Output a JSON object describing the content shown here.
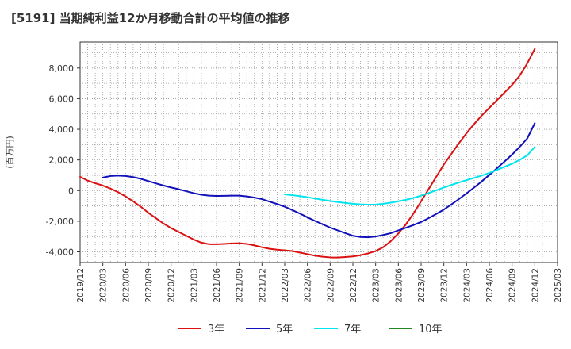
{
  "chart_data": {
    "type": "line",
    "title": "[5191]  当期純利益12か月移動合計の平均値の推移",
    "ylabel": "(百万円)",
    "xlabel": "",
    "ylim": [
      -4700,
      9700
    ],
    "yticks": [
      -4000,
      -2000,
      0,
      2000,
      4000,
      6000,
      8000
    ],
    "ytick_labels": [
      "-4,000",
      "-2,000",
      "0",
      "2,000",
      "4,000",
      "6,000",
      "8,000"
    ],
    "xlim": [
      "2019/12",
      "2025/03"
    ],
    "xtick_labels": [
      "2019/12",
      "2020/03",
      "2020/06",
      "2020/09",
      "2020/12",
      "2021/03",
      "2021/06",
      "2021/09",
      "2021/12",
      "2022/03",
      "2022/06",
      "2022/09",
      "2022/12",
      "2023/03",
      "2023/06",
      "2023/09",
      "2023/12",
      "2024/03",
      "2024/06",
      "2024/09",
      "2024/12",
      "2025/03"
    ],
    "grid": true,
    "legend_position": "bottom",
    "series": [
      {
        "name": "3年",
        "color": "#dd1111",
        "x": [
          "2019/12",
          "2020/01",
          "2020/02",
          "2020/03",
          "2020/04",
          "2020/05",
          "2020/06",
          "2020/07",
          "2020/08",
          "2020/09",
          "2020/10",
          "2020/11",
          "2020/12",
          "2021/01",
          "2021/02",
          "2021/03",
          "2021/04",
          "2021/05",
          "2021/06",
          "2021/07",
          "2021/08",
          "2021/09",
          "2021/10",
          "2021/11",
          "2021/12",
          "2022/01",
          "2022/02",
          "2022/03",
          "2022/04",
          "2022/05",
          "2022/06",
          "2022/07",
          "2022/08",
          "2022/09",
          "2022/10",
          "2022/11",
          "2022/12",
          "2023/01",
          "2023/02",
          "2023/03",
          "2023/04",
          "2023/05",
          "2023/06",
          "2023/07",
          "2023/08",
          "2023/09",
          "2023/10",
          "2023/11",
          "2023/12",
          "2024/01",
          "2024/02",
          "2024/03",
          "2024/04",
          "2024/05",
          "2024/06",
          "2024/07",
          "2024/08",
          "2024/09",
          "2024/10",
          "2024/11",
          "2024/12"
        ],
        "values": [
          900,
          650,
          480,
          330,
          130,
          -100,
          -380,
          -700,
          -1050,
          -1450,
          -1800,
          -2150,
          -2450,
          -2700,
          -2950,
          -3200,
          -3400,
          -3500,
          -3500,
          -3480,
          -3450,
          -3440,
          -3480,
          -3580,
          -3700,
          -3800,
          -3860,
          -3900,
          -3950,
          -4050,
          -4150,
          -4250,
          -4320,
          -4360,
          -4370,
          -4340,
          -4300,
          -4220,
          -4100,
          -3950,
          -3700,
          -3300,
          -2800,
          -2200,
          -1500,
          -700,
          100,
          900,
          1700,
          2400,
          3100,
          3750,
          4350,
          4900,
          5400,
          5900,
          6400,
          6900,
          7500,
          8300,
          9250
        ]
      },
      {
        "name": "5年",
        "color": "#1111bb",
        "x": [
          "2020/03",
          "2020/04",
          "2020/05",
          "2020/06",
          "2020/07",
          "2020/08",
          "2020/09",
          "2020/10",
          "2020/11",
          "2020/12",
          "2021/01",
          "2021/02",
          "2021/03",
          "2021/04",
          "2021/05",
          "2021/06",
          "2021/07",
          "2021/08",
          "2021/09",
          "2021/10",
          "2021/11",
          "2021/12",
          "2022/01",
          "2022/02",
          "2022/03",
          "2022/04",
          "2022/05",
          "2022/06",
          "2022/07",
          "2022/08",
          "2022/09",
          "2022/10",
          "2022/11",
          "2022/12",
          "2023/01",
          "2023/02",
          "2023/03",
          "2023/04",
          "2023/05",
          "2023/06",
          "2023/07",
          "2023/08",
          "2023/09",
          "2023/10",
          "2023/11",
          "2023/12",
          "2024/01",
          "2024/02",
          "2024/03",
          "2024/04",
          "2024/05",
          "2024/06",
          "2024/07",
          "2024/08",
          "2024/09",
          "2024/10",
          "2024/11",
          "2024/12"
        ],
        "values": [
          850,
          950,
          980,
          950,
          880,
          770,
          620,
          470,
          330,
          200,
          90,
          -40,
          -170,
          -270,
          -330,
          -350,
          -340,
          -330,
          -330,
          -380,
          -460,
          -560,
          -720,
          -880,
          -1050,
          -1270,
          -1500,
          -1750,
          -1980,
          -2200,
          -2420,
          -2600,
          -2780,
          -2950,
          -3030,
          -3050,
          -3000,
          -2900,
          -2780,
          -2600,
          -2430,
          -2250,
          -2050,
          -1800,
          -1530,
          -1240,
          -900,
          -550,
          -180,
          200,
          600,
          1020,
          1450,
          1900,
          2350,
          2850,
          3400,
          4400
        ]
      },
      {
        "name": "7年",
        "color": "#00e5ee",
        "x": [
          "2022/03",
          "2022/04",
          "2022/05",
          "2022/06",
          "2022/07",
          "2022/08",
          "2022/09",
          "2022/10",
          "2022/11",
          "2022/12",
          "2023/01",
          "2023/02",
          "2023/03",
          "2023/04",
          "2023/05",
          "2023/06",
          "2023/07",
          "2023/08",
          "2023/09",
          "2023/10",
          "2023/11",
          "2023/12",
          "2024/01",
          "2024/02",
          "2024/03",
          "2024/04",
          "2024/05",
          "2024/06",
          "2024/07",
          "2024/08",
          "2024/09",
          "2024/10",
          "2024/11",
          "2024/12"
        ],
        "values": [
          -250,
          -300,
          -360,
          -430,
          -520,
          -600,
          -680,
          -750,
          -810,
          -860,
          -900,
          -920,
          -910,
          -860,
          -790,
          -700,
          -600,
          -480,
          -330,
          -160,
          20,
          200,
          370,
          530,
          680,
          830,
          980,
          1150,
          1350,
          1550,
          1750,
          2000,
          2300,
          2850
        ]
      },
      {
        "name": "10年",
        "color": "#228822",
        "x": [],
        "values": []
      }
    ]
  }
}
